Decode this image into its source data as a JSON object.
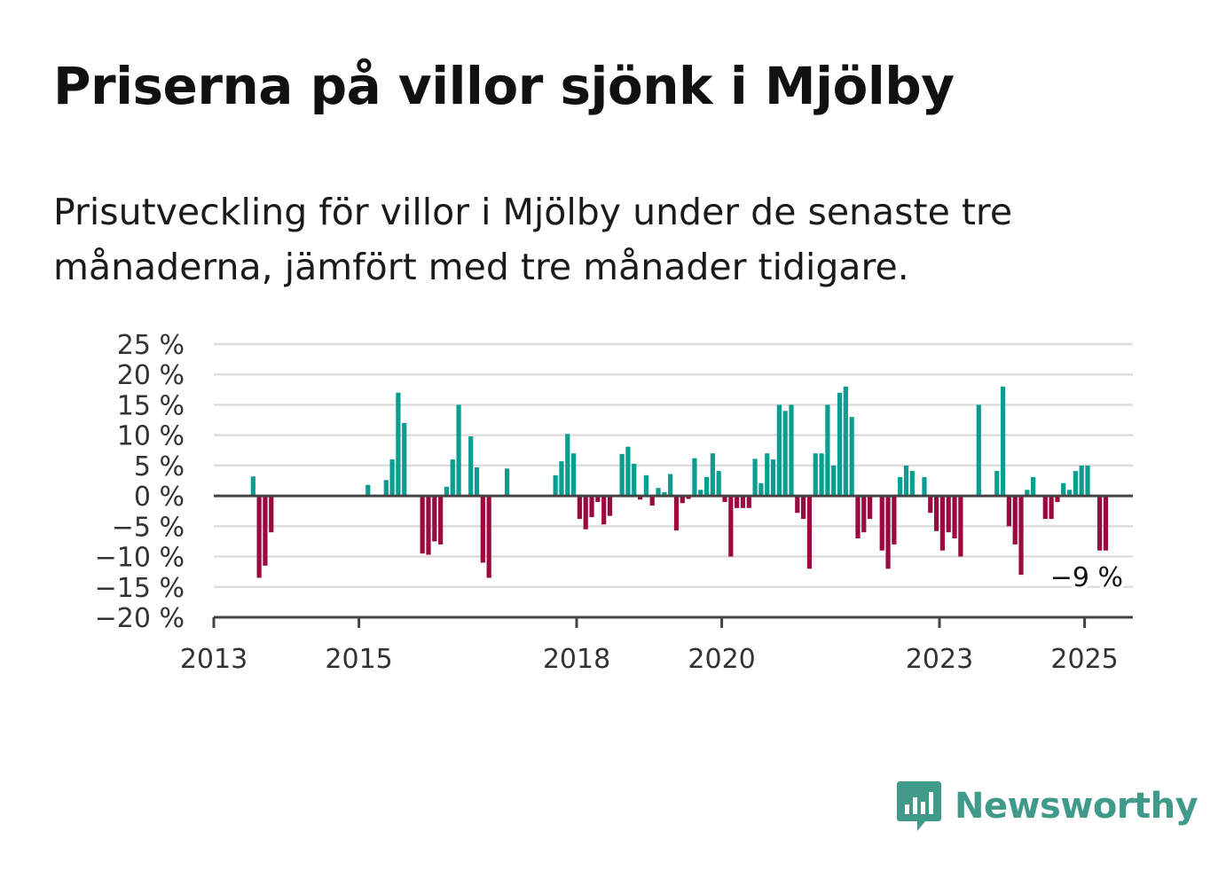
{
  "header": {
    "title": "Priserna på villor sjönk i Mjölby",
    "subtitle": "Prisutveckling för villor i Mjölby under de senaste tre månaderna, jämfört med tre månader tidigare."
  },
  "brand": {
    "name": "Newsworthy",
    "icon": "newsworthy-logo-icon",
    "color": "#3f9a8a"
  },
  "colors": {
    "positive": "#0a9e91",
    "negative": "#9b0a3f",
    "grid": "#dddddd",
    "axis": "#444444"
  },
  "chart_data": {
    "type": "bar",
    "title": "Priserna på villor sjönk i Mjölby",
    "x_unit": "month",
    "x_start": "2013-01",
    "x_end": "2025-08",
    "x_tick_labels": [
      "2013",
      "2015",
      "2018",
      "2020",
      "2023",
      "2025"
    ],
    "y_tick_labels": [
      "25 %",
      "20 %",
      "15 %",
      "10 %",
      "5 %",
      "0 %",
      "−5 %",
      "−10 %",
      "−15 %",
      "−20 %"
    ],
    "y_ticks": [
      25,
      20,
      15,
      10,
      5,
      0,
      -5,
      -10,
      -15,
      -20
    ],
    "ylim": [
      -20,
      25
    ],
    "grid": true,
    "last_value_label": "−9 %",
    "series": [
      {
        "points": [
          [
            "2013-07",
            3.2
          ],
          [
            "2013-08",
            -13.5
          ],
          [
            "2013-09",
            -11.5
          ],
          [
            "2013-10",
            -6
          ],
          [
            "2015-02",
            1.8
          ],
          [
            "2015-05",
            2.6
          ],
          [
            "2015-06",
            6
          ],
          [
            "2015-07",
            17
          ],
          [
            "2015-08",
            12
          ],
          [
            "2015-11",
            -9.5
          ],
          [
            "2015-12",
            -9.7
          ],
          [
            "2016-01",
            -7.5
          ],
          [
            "2016-02",
            -8
          ],
          [
            "2016-03",
            1.5
          ],
          [
            "2016-04",
            6
          ],
          [
            "2016-05",
            15
          ],
          [
            "2016-07",
            9.8
          ],
          [
            "2016-08",
            4.7
          ],
          [
            "2016-09",
            -11
          ],
          [
            "2016-10",
            -13.5
          ],
          [
            "2017-01",
            4.5
          ],
          [
            "2017-09",
            3.4
          ],
          [
            "2017-10",
            5.7
          ],
          [
            "2017-11",
            10.2
          ],
          [
            "2017-12",
            7
          ],
          [
            "2018-01",
            -3.8
          ],
          [
            "2018-02",
            -5.5
          ],
          [
            "2018-03",
            -3.5
          ],
          [
            "2018-04",
            -1
          ],
          [
            "2018-05",
            -4.7
          ],
          [
            "2018-06",
            -3.3
          ],
          [
            "2018-08",
            6.9
          ],
          [
            "2018-09",
            8.1
          ],
          [
            "2018-10",
            5.3
          ],
          [
            "2018-11",
            -0.6
          ],
          [
            "2018-12",
            3.4
          ],
          [
            "2019-01",
            -1.6
          ],
          [
            "2019-02",
            1.3
          ],
          [
            "2019-03",
            0.6
          ],
          [
            "2019-04",
            3.6
          ],
          [
            "2019-05",
            -5.7
          ],
          [
            "2019-06",
            -1.2
          ],
          [
            "2019-07",
            -0.5
          ],
          [
            "2019-08",
            6.2
          ],
          [
            "2019-09",
            1
          ],
          [
            "2019-10",
            3.1
          ],
          [
            "2019-11",
            7
          ],
          [
            "2019-12",
            4.1
          ],
          [
            "2020-01",
            -1
          ],
          [
            "2020-02",
            -10
          ],
          [
            "2020-03",
            -2
          ],
          [
            "2020-04",
            -2
          ],
          [
            "2020-05",
            -2
          ],
          [
            "2020-06",
            6.1
          ],
          [
            "2020-07",
            2.1
          ],
          [
            "2020-08",
            7
          ],
          [
            "2020-09",
            6
          ],
          [
            "2020-10",
            15
          ],
          [
            "2020-11",
            14
          ],
          [
            "2020-12",
            15
          ],
          [
            "2021-01",
            -2.8
          ],
          [
            "2021-02",
            -3.8
          ],
          [
            "2021-03",
            -12
          ],
          [
            "2021-04",
            7
          ],
          [
            "2021-05",
            7
          ],
          [
            "2021-06",
            15
          ],
          [
            "2021-07",
            5
          ],
          [
            "2021-08",
            17
          ],
          [
            "2021-09",
            18
          ],
          [
            "2021-10",
            13
          ],
          [
            "2021-11",
            -7
          ],
          [
            "2021-12",
            -6
          ],
          [
            "2022-01",
            -3.8
          ],
          [
            "2022-03",
            -9
          ],
          [
            "2022-04",
            -12
          ],
          [
            "2022-05",
            -8
          ],
          [
            "2022-06",
            3.1
          ],
          [
            "2022-07",
            5
          ],
          [
            "2022-08",
            4.1
          ],
          [
            "2022-10",
            3.1
          ],
          [
            "2022-11",
            -2.8
          ],
          [
            "2022-12",
            -5.8
          ],
          [
            "2023-01",
            -9
          ],
          [
            "2023-02",
            -6
          ],
          [
            "2023-03",
            -7
          ],
          [
            "2023-04",
            -10
          ],
          [
            "2023-07",
            15
          ],
          [
            "2023-10",
            4.1
          ],
          [
            "2023-11",
            18
          ],
          [
            "2023-12",
            -5
          ],
          [
            "2024-01",
            -8
          ],
          [
            "2024-02",
            -13
          ],
          [
            "2024-03",
            1
          ],
          [
            "2024-04",
            3.1
          ],
          [
            "2024-06",
            -3.8
          ],
          [
            "2024-07",
            -3.8
          ],
          [
            "2024-08",
            -1
          ],
          [
            "2024-09",
            2.1
          ],
          [
            "2024-10",
            1
          ],
          [
            "2024-11",
            4.1
          ],
          [
            "2024-12",
            5
          ],
          [
            "2025-01",
            5
          ],
          [
            "2025-03",
            -9
          ],
          [
            "2025-04",
            -9
          ]
        ]
      }
    ]
  }
}
